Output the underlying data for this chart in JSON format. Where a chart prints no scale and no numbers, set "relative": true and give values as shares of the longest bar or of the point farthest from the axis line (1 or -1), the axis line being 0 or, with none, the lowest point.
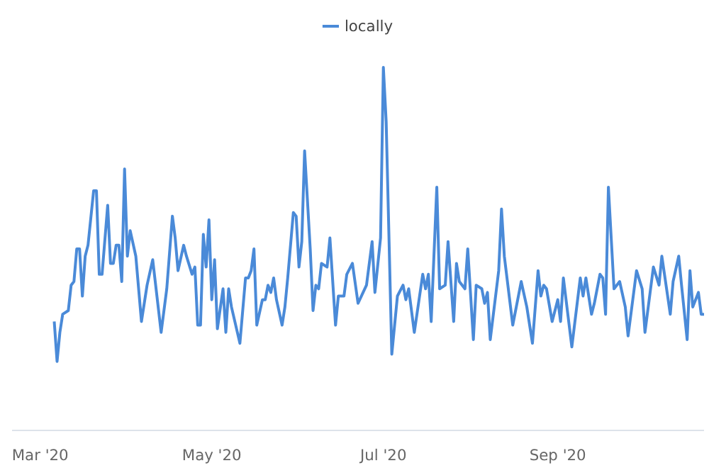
{
  "chart_data": {
    "type": "line",
    "relative": true,
    "tick_labels": "x",
    "grid": false,
    "legend": "top",
    "marker": "none",
    "line_style": "solid",
    "xlim": [
      "2020-02-20",
      "2020-10-23"
    ],
    "xticks": [
      {
        "value": "2020-03-01",
        "label": "Mar '20"
      },
      {
        "value": "2020-05-01",
        "label": "May '20"
      },
      {
        "value": "2020-07-01",
        "label": "Jul '20"
      },
      {
        "value": "2020-09-01",
        "label": "Sep '20"
      }
    ],
    "x": [
      "2020-03-06",
      "2020-03-07",
      "2020-03-08",
      "2020-03-09",
      "2020-03-11",
      "2020-03-12",
      "2020-03-13",
      "2020-03-14",
      "2020-03-15",
      "2020-03-16",
      "2020-03-17",
      "2020-03-18",
      "2020-03-20",
      "2020-03-21",
      "2020-03-22",
      "2020-03-23",
      "2020-03-25",
      "2020-03-26",
      "2020-03-27",
      "2020-03-28",
      "2020-03-29",
      "2020-03-30",
      "2020-03-31",
      "2020-04-01",
      "2020-04-02",
      "2020-04-04",
      "2020-04-06",
      "2020-04-08",
      "2020-04-10",
      "2020-04-13",
      "2020-04-15",
      "2020-04-17",
      "2020-04-18",
      "2020-04-19",
      "2020-04-21",
      "2020-04-22",
      "2020-04-24",
      "2020-04-25",
      "2020-04-26",
      "2020-04-27",
      "2020-04-28",
      "2020-04-29",
      "2020-04-30",
      "2020-05-01",
      "2020-05-02",
      "2020-05-03",
      "2020-05-05",
      "2020-05-06",
      "2020-05-07",
      "2020-05-08",
      "2020-05-11",
      "2020-05-13",
      "2020-05-14",
      "2020-05-15",
      "2020-05-16",
      "2020-05-17",
      "2020-05-19",
      "2020-05-20",
      "2020-05-21",
      "2020-05-22",
      "2020-05-23",
      "2020-05-24",
      "2020-05-26",
      "2020-05-27",
      "2020-05-28",
      "2020-05-30",
      "2020-05-31",
      "2020-06-01",
      "2020-06-02",
      "2020-06-03",
      "2020-06-05",
      "2020-06-06",
      "2020-06-07",
      "2020-06-08",
      "2020-06-09",
      "2020-06-11",
      "2020-06-12",
      "2020-06-14",
      "2020-06-15",
      "2020-06-17",
      "2020-06-18",
      "2020-06-20",
      "2020-06-22",
      "2020-06-25",
      "2020-06-27",
      "2020-06-28",
      "2020-06-30",
      "2020-07-01",
      "2020-07-02",
      "2020-07-04",
      "2020-07-06",
      "2020-07-08",
      "2020-07-09",
      "2020-07-10",
      "2020-07-12",
      "2020-07-15",
      "2020-07-16",
      "2020-07-17",
      "2020-07-18",
      "2020-07-20",
      "2020-07-21",
      "2020-07-23",
      "2020-07-24",
      "2020-07-26",
      "2020-07-27",
      "2020-07-28",
      "2020-07-30",
      "2020-07-31",
      "2020-08-02",
      "2020-08-03",
      "2020-08-05",
      "2020-08-06",
      "2020-08-07",
      "2020-08-08",
      "2020-08-11",
      "2020-08-12",
      "2020-08-13",
      "2020-08-16",
      "2020-08-18",
      "2020-08-19",
      "2020-08-21",
      "2020-08-23",
      "2020-08-25",
      "2020-08-26",
      "2020-08-27",
      "2020-08-28",
      "2020-08-30",
      "2020-09-01",
      "2020-09-02",
      "2020-09-03",
      "2020-09-06",
      "2020-09-09",
      "2020-09-10",
      "2020-09-11",
      "2020-09-13",
      "2020-09-14",
      "2020-09-16",
      "2020-09-17",
      "2020-09-18",
      "2020-09-19",
      "2020-09-21",
      "2020-09-23",
      "2020-09-25",
      "2020-09-26",
      "2020-09-29",
      "2020-10-01",
      "2020-10-02",
      "2020-10-05",
      "2020-10-07",
      "2020-10-08",
      "2020-10-11",
      "2020-10-12",
      "2020-10-14",
      "2020-10-15",
      "2020-10-17",
      "2020-10-18",
      "2020-10-19",
      "2020-10-21",
      "2020-10-22",
      "2020-10-23"
    ],
    "series": [
      {
        "name": "locally",
        "color": "#4a8ad8",
        "values": [
          0.3,
          0.19,
          0.27,
          0.32,
          0.33,
          0.4,
          0.41,
          0.5,
          0.5,
          0.37,
          0.48,
          0.51,
          0.66,
          0.66,
          0.43,
          0.43,
          0.62,
          0.46,
          0.46,
          0.51,
          0.51,
          0.41,
          0.72,
          0.48,
          0.55,
          0.48,
          0.3,
          0.4,
          0.47,
          0.27,
          0.39,
          0.59,
          0.53,
          0.44,
          0.51,
          0.48,
          0.43,
          0.45,
          0.29,
          0.29,
          0.54,
          0.45,
          0.58,
          0.36,
          0.47,
          0.28,
          0.39,
          0.27,
          0.39,
          0.34,
          0.24,
          0.42,
          0.42,
          0.44,
          0.5,
          0.29,
          0.36,
          0.36,
          0.4,
          0.38,
          0.42,
          0.36,
          0.29,
          0.34,
          0.42,
          0.6,
          0.59,
          0.45,
          0.52,
          0.77,
          0.5,
          0.33,
          0.4,
          0.39,
          0.46,
          0.45,
          0.53,
          0.29,
          0.37,
          0.37,
          0.43,
          0.46,
          0.35,
          0.4,
          0.52,
          0.38,
          0.53,
          1.0,
          0.85,
          0.21,
          0.37,
          0.4,
          0.36,
          0.39,
          0.27,
          0.43,
          0.39,
          0.43,
          0.3,
          0.67,
          0.39,
          0.4,
          0.52,
          0.3,
          0.46,
          0.41,
          0.39,
          0.5,
          0.25,
          0.4,
          0.39,
          0.35,
          0.38,
          0.25,
          0.44,
          0.61,
          0.48,
          0.29,
          0.37,
          0.41,
          0.34,
          0.24,
          0.44,
          0.37,
          0.4,
          0.39,
          0.3,
          0.36,
          0.3,
          0.42,
          0.23,
          0.42,
          0.37,
          0.42,
          0.32,
          0.35,
          0.43,
          0.42,
          0.32,
          0.67,
          0.39,
          0.41,
          0.34,
          0.26,
          0.44,
          0.39,
          0.27,
          0.45,
          0.4,
          0.48,
          0.32,
          0.41,
          0.48,
          0.4,
          0.25,
          0.44,
          0.34,
          0.38,
          0.32,
          0.32
        ]
      }
    ]
  }
}
